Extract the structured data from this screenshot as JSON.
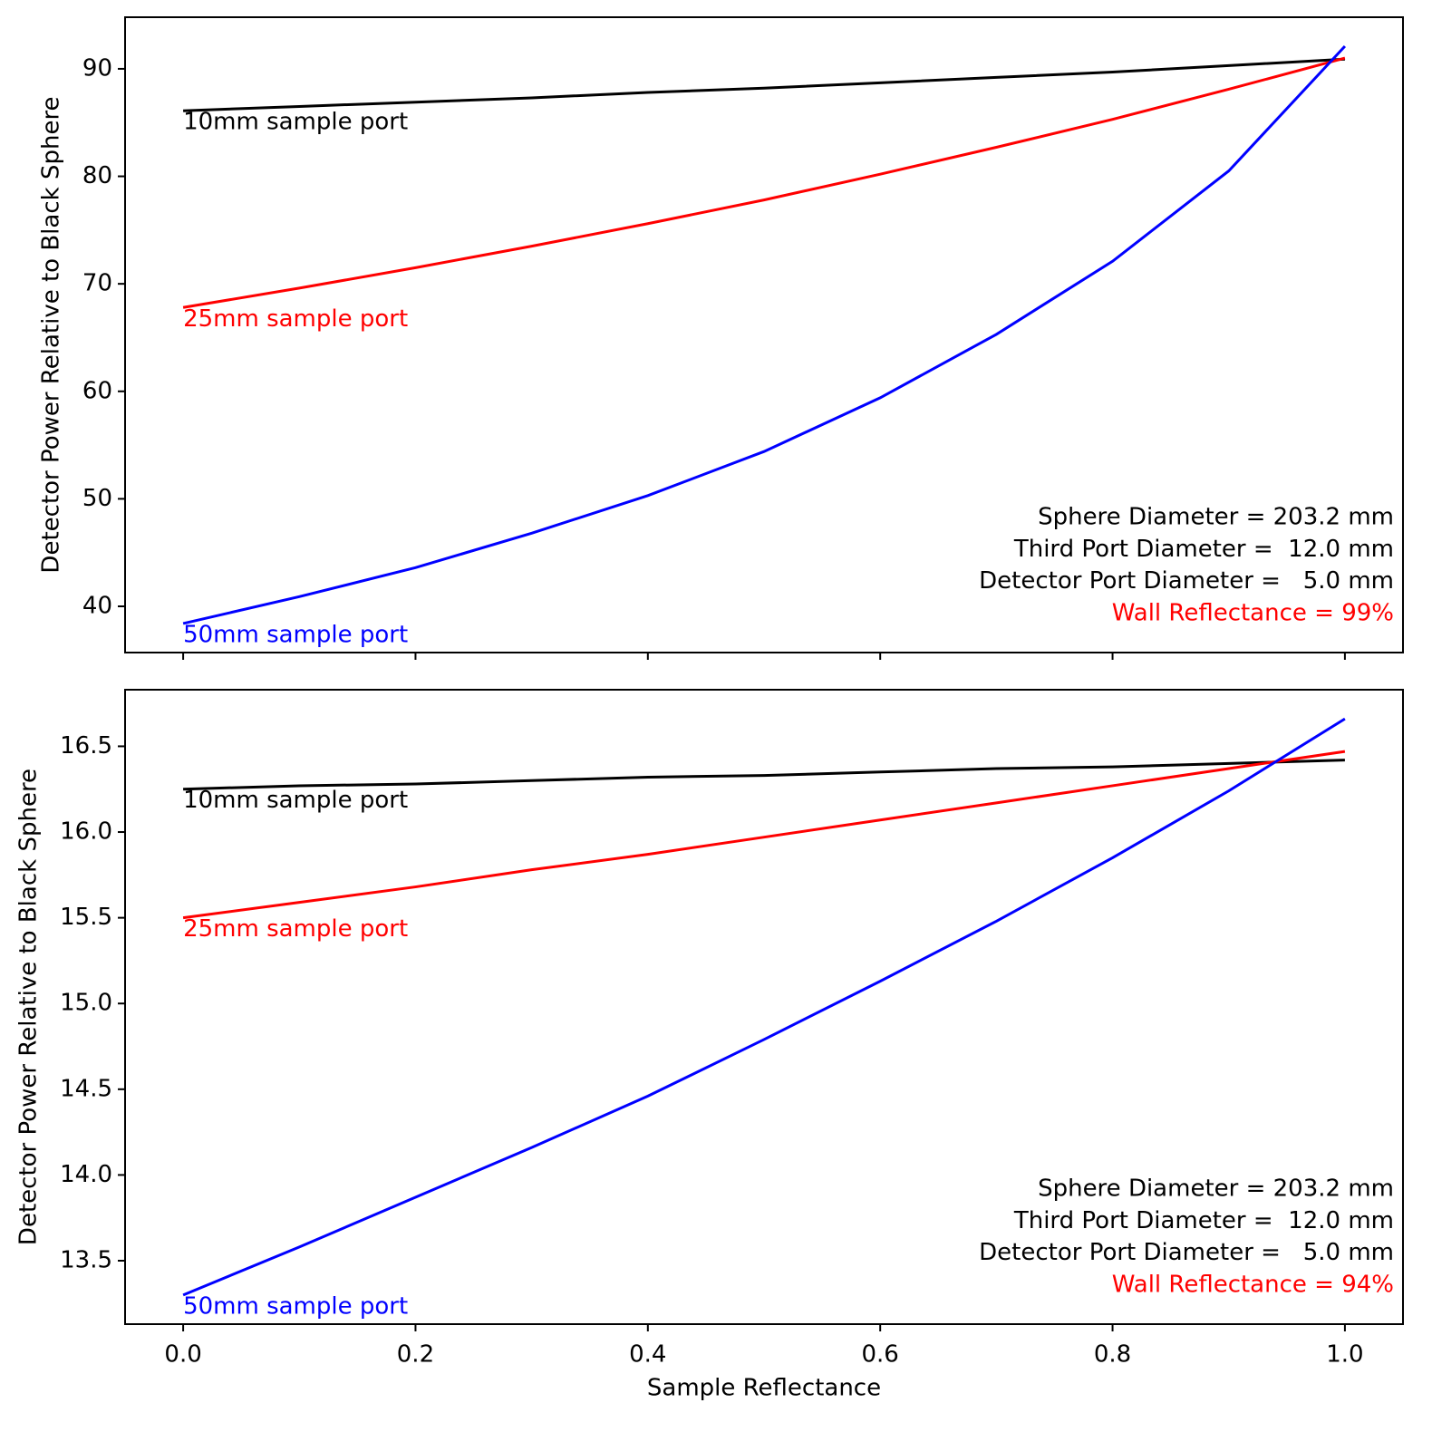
{
  "chart_data": [
    {
      "type": "line",
      "ylabel": "Detector Power Relative to Black Sphere",
      "x": [
        0,
        0.1,
        0.2,
        0.3,
        0.4,
        0.5,
        0.6,
        0.7,
        0.8,
        0.9,
        1.0
      ],
      "series": [
        {
          "name": "10mm sample port",
          "color": "#000000",
          "values": [
            86.1,
            86.5,
            86.9,
            87.3,
            87.8,
            88.2,
            88.7,
            89.2,
            89.7,
            90.3,
            90.9
          ]
        },
        {
          "name": "25mm sample port",
          "color": "#ff0000",
          "values": [
            67.8,
            69.6,
            71.5,
            73.5,
            75.6,
            77.8,
            80.2,
            82.7,
            85.3,
            88.1,
            91.0
          ]
        },
        {
          "name": "50mm sample port",
          "color": "#0000ff",
          "values": [
            38.4,
            40.9,
            43.6,
            46.8,
            50.3,
            54.4,
            59.4,
            65.3,
            72.1,
            80.5,
            92.1
          ]
        }
      ],
      "xlim": [
        -0.05,
        1.05
      ],
      "xticks": [
        0,
        0.2,
        0.4,
        0.6,
        0.8,
        1.0
      ],
      "ylim": [
        35.7,
        94.8
      ],
      "yticks": [
        40,
        50,
        60,
        70,
        80,
        90
      ],
      "annotations": [
        {
          "text": "Sphere Diameter = 203.2 mm",
          "color": "#000000"
        },
        {
          "text": "Third Port Diameter =  12.0 mm",
          "color": "#000000"
        },
        {
          "text": "Detector Port Diameter =   5.0 mm",
          "color": "#000000"
        },
        {
          "text": "Wall Reflectance = 99%",
          "color": "#ff0000"
        }
      ]
    },
    {
      "type": "line",
      "xlabel": "Sample Reflectance",
      "ylabel": "Detector Power Relative to Black Sphere",
      "x": [
        0,
        0.1,
        0.2,
        0.3,
        0.4,
        0.5,
        0.6,
        0.7,
        0.8,
        0.9,
        1.0
      ],
      "series": [
        {
          "name": "10mm sample port",
          "color": "#000000",
          "values": [
            16.25,
            16.27,
            16.28,
            16.3,
            16.32,
            16.33,
            16.35,
            16.37,
            16.38,
            16.4,
            16.42
          ]
        },
        {
          "name": "25mm sample port",
          "color": "#ff0000",
          "values": [
            15.5,
            15.59,
            15.68,
            15.78,
            15.87,
            15.97,
            16.07,
            16.17,
            16.27,
            16.37,
            16.47
          ]
        },
        {
          "name": "50mm sample port",
          "color": "#0000ff",
          "values": [
            13.3,
            13.58,
            13.87,
            14.16,
            14.46,
            14.79,
            15.13,
            15.48,
            15.85,
            16.24,
            16.66
          ]
        }
      ],
      "xlim": [
        -0.05,
        1.05
      ],
      "xticks": [
        {
          "value": 0,
          "label": "0.0"
        },
        {
          "value": 0.2,
          "label": "0.2"
        },
        {
          "value": 0.4,
          "label": "0.4"
        },
        {
          "value": 0.6,
          "label": "0.6"
        },
        {
          "value": 0.8,
          "label": "0.8"
        },
        {
          "value": 1.0,
          "label": "1.0"
        }
      ],
      "ylim": [
        13.13,
        16.83
      ],
      "yticks": [
        13.5,
        {
          "value": 14.0,
          "label": "14.0"
        },
        14.5,
        {
          "value": 15.0,
          "label": "15.0"
        },
        15.5,
        {
          "value": 16.0,
          "label": "16.0"
        },
        16.5
      ],
      "annotations": [
        {
          "text": "Sphere Diameter = 203.2 mm",
          "color": "#000000"
        },
        {
          "text": "Third Port Diameter =  12.0 mm",
          "color": "#000000"
        },
        {
          "text": "Detector Port Diameter =   5.0 mm",
          "color": "#000000"
        },
        {
          "text": "Wall Reflectance = 94%",
          "color": "#ff0000"
        }
      ]
    }
  ]
}
